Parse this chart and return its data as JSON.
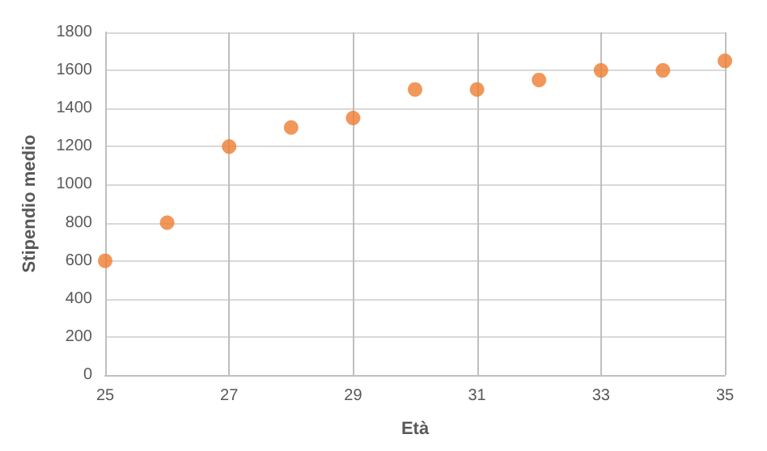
{
  "chart_data": {
    "type": "scatter",
    "xlabel": "Età",
    "ylabel": "Stipendio medio",
    "x": [
      25,
      26,
      27,
      28,
      29,
      30,
      31,
      32,
      33,
      34,
      35
    ],
    "series": [
      {
        "color": "#ed7d31",
        "values": [
          600,
          800,
          1200,
          1300,
          1350,
          1500,
          1500,
          1550,
          1600,
          1600,
          1650
        ]
      }
    ],
    "xlim": [
      25,
      35
    ],
    "xticks": [
      25,
      27,
      29,
      31,
      33,
      35
    ],
    "ylim": [
      0,
      1800
    ],
    "yticks": [
      0,
      200,
      400,
      600,
      800,
      1000,
      1200,
      1400,
      1600,
      1800
    ],
    "grid": true,
    "marker": "circle"
  }
}
